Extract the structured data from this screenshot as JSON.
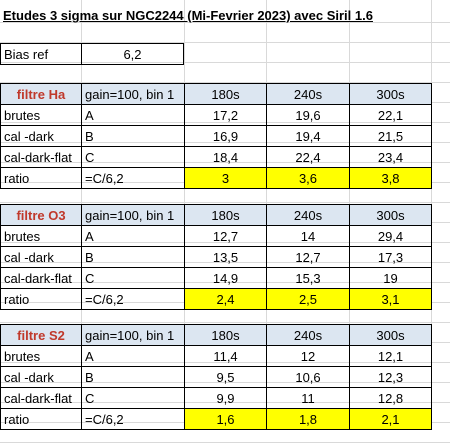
{
  "title": "Etudes 3 sigma sur NGC2244 (Mi-Fevrier 2023) avec Siril 1.6",
  "bias": {
    "label": "Bias ref",
    "value": "6,2"
  },
  "tables": [
    {
      "filter": "filtre Ha",
      "gain": "gain=100, bin 1",
      "times": [
        "180s",
        "240s",
        "300s"
      ],
      "rows": [
        {
          "label": "brutes",
          "key": "A",
          "values": [
            "17,2",
            "19,6",
            "22,1"
          ]
        },
        {
          "label": "cal -dark",
          "key": "B",
          "values": [
            "16,9",
            "19,4",
            "21,5"
          ]
        },
        {
          "label": "cal-dark-flat",
          "key": "C",
          "values": [
            "18,4",
            "22,4",
            "23,4"
          ]
        },
        {
          "label": "ratio",
          "key": "=C/6,2",
          "values": [
            "3",
            "3,6",
            "3,8"
          ]
        }
      ]
    },
    {
      "filter": "filtre O3",
      "gain": "gain=100, bin 1",
      "times": [
        "180s",
        "240s",
        "300s"
      ],
      "rows": [
        {
          "label": "brutes",
          "key": "A",
          "values": [
            "12,7",
            "14",
            "29,4"
          ]
        },
        {
          "label": "cal -dark",
          "key": "B",
          "values": [
            "13,5",
            "12,7",
            "17,3"
          ]
        },
        {
          "label": "cal-dark-flat",
          "key": "C",
          "values": [
            "14,9",
            "15,3",
            "19"
          ]
        },
        {
          "label": "ratio",
          "key": "=C/6,2",
          "values": [
            "2,4",
            "2,5",
            "3,1"
          ]
        }
      ]
    },
    {
      "filter": "filtre S2",
      "gain": "gain=100, bin 1",
      "times": [
        "180s",
        "240s",
        "300s"
      ],
      "rows": [
        {
          "label": "brutes",
          "key": "A",
          "values": [
            "11,4",
            "12",
            "12,1"
          ]
        },
        {
          "label": "cal -dark",
          "key": "B",
          "values": [
            "9,5",
            "10,6",
            "12,3"
          ]
        },
        {
          "label": "cal-dark-flat",
          "key": "C",
          "values": [
            "9,9",
            "11",
            "12,8"
          ]
        },
        {
          "label": "ratio",
          "key": "=C/6,2",
          "values": [
            "1,6",
            "1,8",
            "2,1"
          ]
        }
      ]
    }
  ],
  "colors": {
    "header_fill": "#dce6f1",
    "ratio_fill": "#ffff00",
    "filter_text": "#c0392b",
    "gridline": "#d9d9d9"
  }
}
